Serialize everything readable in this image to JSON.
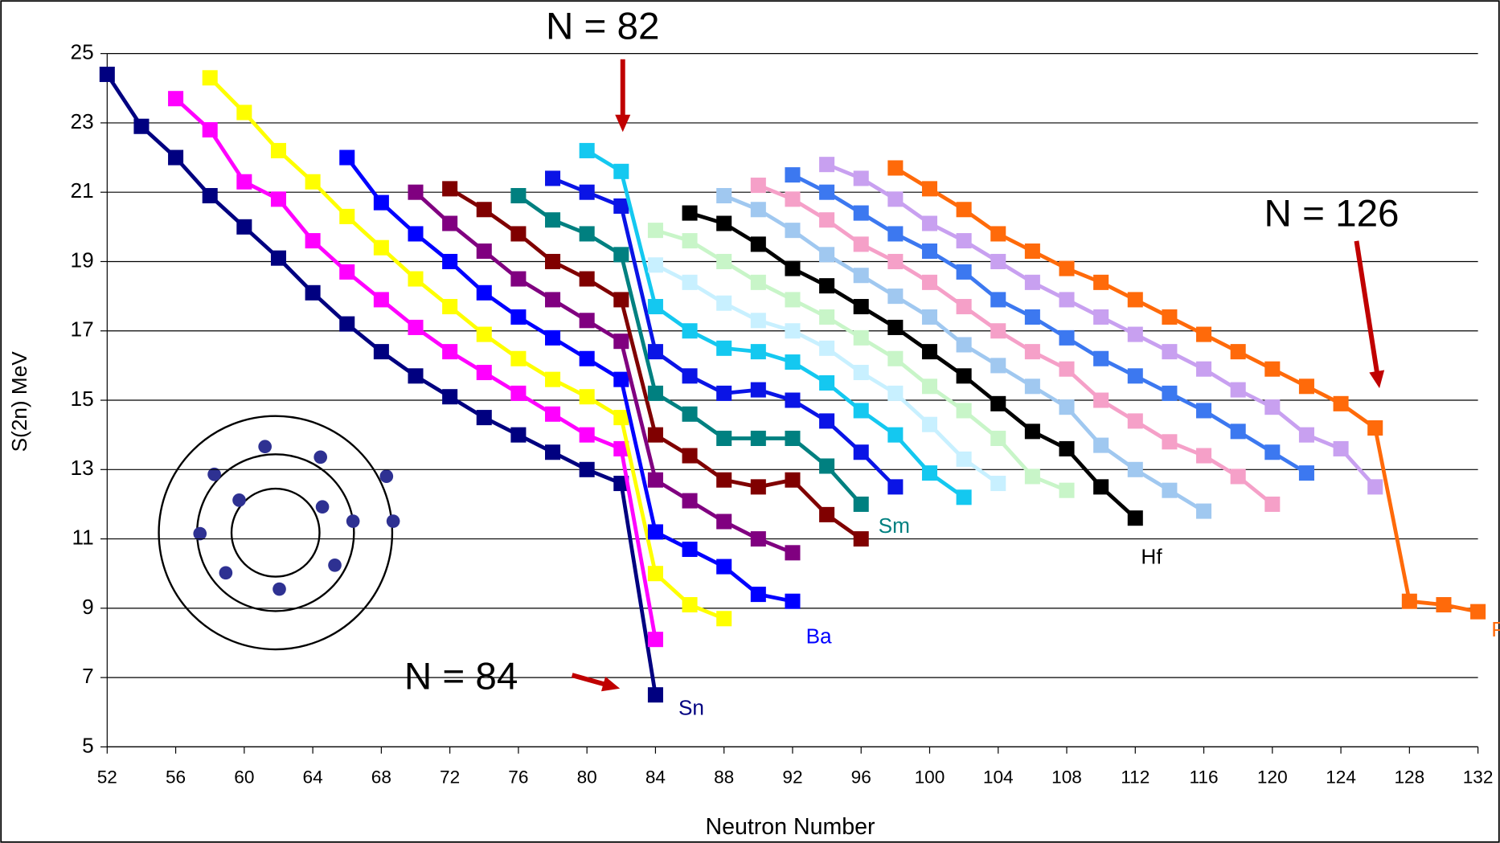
{
  "chart_data": {
    "type": "line",
    "x_label": "Neutron Number",
    "y_label": "S(2n) MeV",
    "xlim": [
      52,
      132
    ],
    "xticks": [
      52,
      56,
      60,
      64,
      68,
      72,
      76,
      80,
      84,
      88,
      92,
      96,
      100,
      104,
      108,
      112,
      116,
      120,
      124,
      128,
      132
    ],
    "ylim": [
      5,
      25
    ],
    "yticks": [
      5,
      7,
      9,
      11,
      13,
      15,
      17,
      19,
      21,
      23,
      25
    ],
    "grid": true,
    "annotations": [
      "N = 82",
      "N = 126",
      "N = 84"
    ],
    "series": [
      {
        "name": "Sn",
        "color": "#000080",
        "x": [
          52,
          54,
          56,
          58,
          60,
          62,
          64,
          66,
          68,
          70,
          72,
          74,
          76,
          78,
          80,
          82,
          84
        ],
        "values": [
          24.4,
          22.9,
          22.0,
          20.9,
          20.0,
          19.1,
          18.1,
          17.2,
          16.4,
          15.7,
          15.1,
          14.5,
          14.0,
          13.5,
          13.0,
          12.6,
          6.5
        ]
      },
      {
        "color": "#ff00ff",
        "x": [
          56,
          58,
          60,
          62,
          64,
          66,
          68,
          70,
          72,
          74,
          76,
          78,
          80,
          82,
          84
        ],
        "values": [
          23.7,
          22.8,
          21.3,
          20.8,
          19.6,
          18.7,
          17.9,
          17.1,
          16.4,
          15.8,
          15.2,
          14.6,
          14.0,
          13.6,
          8.1
        ]
      },
      {
        "color": "#ffff00",
        "x": [
          58,
          60,
          62,
          64,
          66,
          68,
          70,
          72,
          74,
          76,
          78,
          80,
          82,
          84,
          86,
          88
        ],
        "values": [
          24.3,
          23.3,
          22.2,
          21.3,
          20.3,
          19.4,
          18.5,
          17.7,
          16.9,
          16.2,
          15.6,
          15.1,
          14.5,
          10.0,
          9.1,
          8.7
        ]
      },
      {
        "name": "Ba",
        "color": "#0000ff",
        "x": [
          66,
          68,
          70,
          72,
          74,
          76,
          78,
          80,
          82,
          84,
          86,
          88,
          90,
          92
        ],
        "values": [
          22.0,
          20.7,
          19.8,
          19.0,
          18.1,
          17.4,
          16.8,
          16.2,
          15.6,
          11.2,
          10.7,
          10.2,
          9.4,
          9.2
        ]
      },
      {
        "color": "#800080",
        "x": [
          70,
          72,
          74,
          76,
          78,
          80,
          82,
          84,
          86,
          88,
          90,
          92
        ],
        "values": [
          21.0,
          20.1,
          19.3,
          18.5,
          17.9,
          17.3,
          16.7,
          12.7,
          12.1,
          11.5,
          11.0,
          10.6
        ]
      },
      {
        "color": "#800000",
        "x": [
          72,
          74,
          76,
          78,
          80,
          82,
          84,
          86,
          88,
          90,
          92,
          94,
          96
        ],
        "values": [
          21.1,
          20.5,
          19.8,
          19.0,
          18.5,
          17.9,
          14.0,
          13.4,
          12.7,
          12.5,
          12.7,
          11.7,
          11.0
        ]
      },
      {
        "name": "Sm",
        "color": "#008080",
        "x": [
          76,
          78,
          80,
          82,
          84,
          86,
          88,
          90,
          92,
          94,
          96
        ],
        "values": [
          20.9,
          20.2,
          19.8,
          19.2,
          15.2,
          14.6,
          13.9,
          13.9,
          13.9,
          13.1,
          12.0
        ]
      },
      {
        "color": "#0a14e6",
        "x": [
          78,
          80,
          82,
          84,
          86,
          88,
          90,
          92,
          94,
          96,
          98
        ],
        "values": [
          21.4,
          21.0,
          20.6,
          16.4,
          15.7,
          15.2,
          15.3,
          15.0,
          14.4,
          13.5,
          12.5
        ]
      },
      {
        "color": "#14c8f0",
        "x": [
          80,
          82,
          84,
          86,
          88,
          90,
          92,
          94,
          96,
          98,
          100,
          102
        ],
        "values": [
          22.2,
          21.6,
          17.7,
          17.0,
          16.5,
          16.4,
          16.1,
          15.5,
          14.7,
          14.0,
          12.9,
          12.2
        ]
      },
      {
        "color": "#c8f0ff",
        "x": [
          84,
          86,
          88,
          90,
          92,
          94,
          96,
          98,
          100,
          102,
          104
        ],
        "values": [
          18.9,
          18.4,
          17.8,
          17.3,
          17.0,
          16.5,
          15.8,
          15.2,
          14.3,
          13.3,
          12.6
        ]
      },
      {
        "color": "#c8f5c8",
        "x": [
          84,
          86,
          88,
          90,
          92,
          94,
          96,
          98,
          100,
          102,
          104,
          106,
          108
        ],
        "values": [
          19.9,
          19.6,
          19.0,
          18.4,
          17.9,
          17.4,
          16.8,
          16.2,
          15.4,
          14.7,
          13.9,
          12.8,
          12.4
        ]
      },
      {
        "name": "Hf",
        "color": "#000000",
        "x": [
          86,
          88,
          90,
          92,
          94,
          96,
          98,
          100,
          102,
          104,
          106,
          108,
          110,
          112
        ],
        "values": [
          20.4,
          20.1,
          19.5,
          18.8,
          18.3,
          17.7,
          17.1,
          16.4,
          15.7,
          14.9,
          14.1,
          13.6,
          12.5,
          11.6
        ]
      },
      {
        "color": "#a0c8f0",
        "x": [
          88,
          90,
          92,
          94,
          96,
          98,
          100,
          102,
          104,
          106,
          108,
          110,
          112,
          114,
          116
        ],
        "values": [
          20.9,
          20.5,
          19.9,
          19.2,
          18.6,
          18.0,
          17.4,
          16.6,
          16.0,
          15.4,
          14.8,
          13.7,
          13.0,
          12.4,
          11.8
        ]
      },
      {
        "color": "#f5a0c8",
        "x": [
          90,
          92,
          94,
          96,
          98,
          100,
          102,
          104,
          106,
          108,
          110,
          112,
          114,
          116,
          118,
          120
        ],
        "values": [
          21.2,
          20.8,
          20.2,
          19.5,
          19.0,
          18.4,
          17.7,
          17.0,
          16.4,
          15.9,
          15.0,
          14.4,
          13.8,
          13.4,
          12.8,
          12.0
        ]
      },
      {
        "color": "#3c78f0",
        "x": [
          92,
          94,
          96,
          98,
          100,
          102,
          104,
          106,
          108,
          110,
          112,
          114,
          116,
          118,
          120,
          122
        ],
        "values": [
          21.5,
          21.0,
          20.4,
          19.8,
          19.3,
          18.7,
          17.9,
          17.4,
          16.8,
          16.2,
          15.7,
          15.2,
          14.7,
          14.1,
          13.5,
          12.9
        ]
      },
      {
        "color": "#c8a0f0",
        "x": [
          94,
          96,
          98,
          100,
          102,
          104,
          106,
          108,
          110,
          112,
          114,
          116,
          118,
          120,
          122,
          124,
          126
        ],
        "values": [
          21.8,
          21.4,
          20.8,
          20.1,
          19.6,
          19.0,
          18.4,
          17.9,
          17.4,
          16.9,
          16.4,
          15.9,
          15.3,
          14.8,
          14.0,
          13.6,
          12.5
        ]
      },
      {
        "name": "Pb",
        "color": "#ff6a0a",
        "x": [
          98,
          100,
          102,
          104,
          106,
          108,
          110,
          112,
          114,
          116,
          118,
          120,
          122,
          124,
          126,
          128,
          130,
          132
        ],
        "values": [
          21.7,
          21.1,
          20.5,
          19.8,
          19.3,
          18.8,
          18.4,
          17.9,
          17.4,
          16.9,
          16.4,
          15.9,
          15.4,
          14.9,
          14.2,
          9.2,
          9.1,
          8.9
        ]
      }
    ]
  }
}
